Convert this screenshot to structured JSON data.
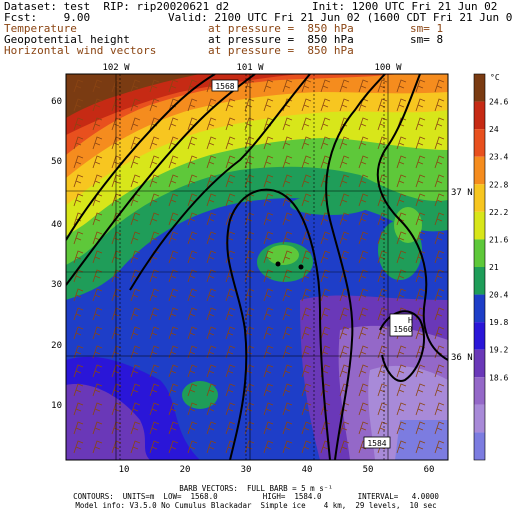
{
  "header": {
    "dataset": "Dataset: test  RIP: rip20020621 d2",
    "init": "Init: 1200 UTC Fri 21 Jun 02",
    "fcst": "Fcst:    9.00",
    "valid": "Valid: 2100 UTC Fri 21 Jun 02 (1600 CDT Fri 21 Jun 02)",
    "fields": [
      {
        "name": "Temperature",
        "pressure": "at pressure =  850 hPa",
        "sm": "sm= 1",
        "color": "brown"
      },
      {
        "name": "Geopotential height",
        "pressure": "at pressure =  850 hPa",
        "sm": "sm= 8",
        "color": "black"
      },
      {
        "name": "Horizontal wind vectors",
        "pressure": "at pressure =  850 hPa",
        "sm": "",
        "color": "brown"
      }
    ]
  },
  "map": {
    "longitude_labels": [
      "102 W",
      "101 W",
      "100 W"
    ],
    "latitude_labels": [
      "37 N",
      "36 N"
    ],
    "x_ticks": [
      "10",
      "20",
      "30",
      "40",
      "50",
      "60"
    ],
    "y_ticks": [
      "10",
      "20",
      "30",
      "40",
      "50",
      "60"
    ],
    "contour_labels": [
      "1568",
      "1560",
      "1584"
    ],
    "high_marker": "H",
    "colorbar": {
      "unit": "°C",
      "levels": [
        "24.6",
        "24",
        "23.4",
        "22.8",
        "22.2",
        "21.6",
        "21",
        "20.4",
        "19.8",
        "19.2",
        "18.6"
      ],
      "colors": [
        "#7a3b12",
        "#c62a14",
        "#e8501e",
        "#f58c1e",
        "#f7c620",
        "#d8e61a",
        "#5ec83a",
        "#1f9d59",
        "#1e3ec8",
        "#2a16d8",
        "#6a38b8",
        "#9468c8",
        "#a88ad8",
        "#7c7ce0"
      ]
    }
  },
  "footer": {
    "barbs": "BARB VECTORS:  FULL BARB = 5 m s⁻¹",
    "contours": "CONTOURS:  UNITS=m  LOW=  1568.0          HIGH=  1584.0        INTERVAL=   4.0000",
    "model": "Model info: V3.5.0 No Cumulus Blackadar  Simple ice    4 km,  29 levels,  10 sec"
  }
}
